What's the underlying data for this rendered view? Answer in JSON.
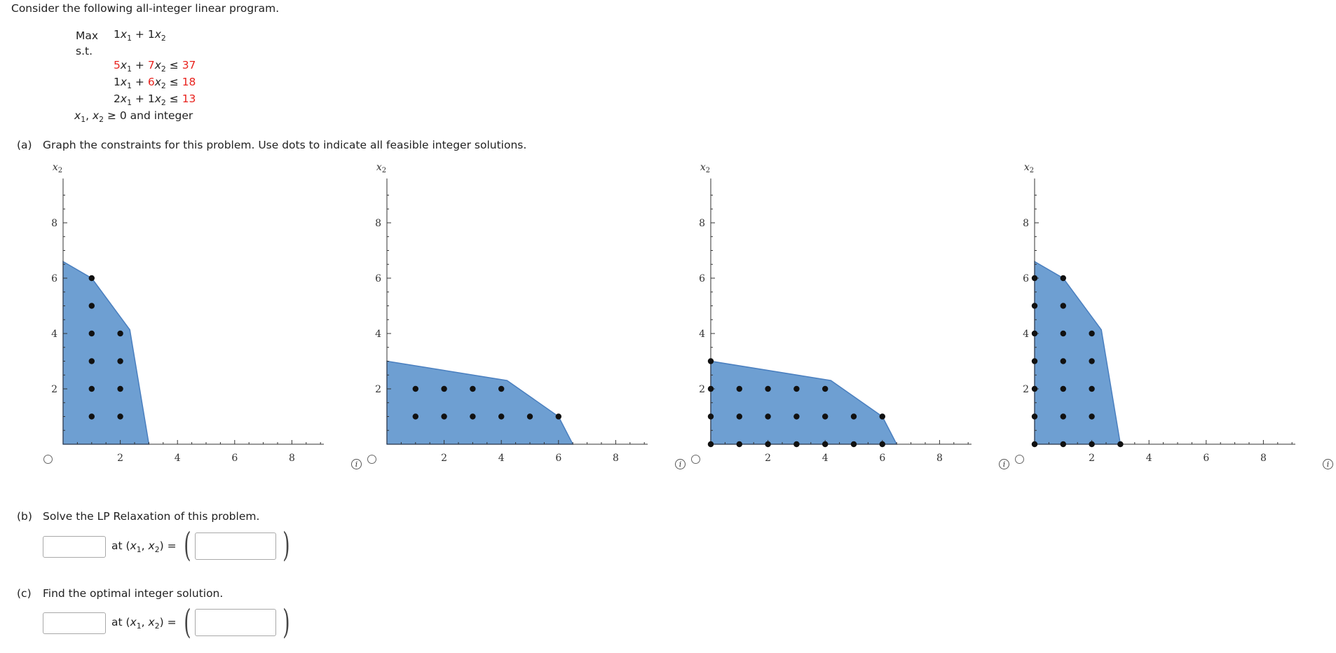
{
  "problem": {
    "intro": "Consider the following all-integer linear program.",
    "max_label": "Max",
    "st_label": "s.t.",
    "nonneg": "≥ 0 and integer",
    "objective": {
      "c1": "1",
      "c2": "1"
    },
    "constraints": [
      {
        "a": "5",
        "b": "7",
        "rhs": "37",
        "a_red": true,
        "b_red": true
      },
      {
        "a": "1",
        "b": "6",
        "rhs": "18",
        "a_red": false,
        "b_red": true
      },
      {
        "a": "2",
        "b": "1",
        "rhs": "13",
        "a_red": false,
        "b_red": false
      }
    ],
    "x1": "x",
    "x2": "x",
    "sub1": "1",
    "sub2": "2",
    "plus": "+",
    "le": "≤"
  },
  "colors": {
    "region": "#6e9fd2",
    "region_edge": "#4a7fbf",
    "red": "#e8231e",
    "dot": "#111111"
  },
  "part_a": {
    "label": "(a)",
    "text": "Graph the constraints for this problem. Use dots to indicate all feasible integer solutions.",
    "graphs": [
      {
        "region": [
          [
            0,
            0
          ],
          [
            0,
            6.6
          ],
          [
            1,
            6
          ],
          [
            2.333,
            4.133
          ],
          [
            3,
            0
          ]
        ],
        "points": [
          [
            1,
            6
          ],
          [
            1,
            5
          ],
          [
            1,
            4
          ],
          [
            2,
            4
          ],
          [
            1,
            3
          ],
          [
            2,
            3
          ],
          [
            1,
            2
          ],
          [
            2,
            2
          ],
          [
            1,
            1
          ],
          [
            2,
            1
          ]
        ]
      },
      {
        "region": [
          [
            0,
            0
          ],
          [
            0,
            3
          ],
          [
            4.2,
            2.3
          ],
          [
            6,
            1
          ],
          [
            6.5,
            0
          ]
        ],
        "points": [
          [
            1,
            2
          ],
          [
            2,
            2
          ],
          [
            3,
            2
          ],
          [
            4,
            2
          ],
          [
            1,
            1
          ],
          [
            2,
            1
          ],
          [
            3,
            1
          ],
          [
            4,
            1
          ],
          [
            5,
            1
          ],
          [
            6,
            1
          ]
        ]
      },
      {
        "region": [
          [
            0,
            0
          ],
          [
            0,
            3
          ],
          [
            4.2,
            2.3
          ],
          [
            6,
            1
          ],
          [
            6.5,
            0
          ]
        ],
        "points": [
          [
            0,
            3
          ],
          [
            0,
            2
          ],
          [
            1,
            2
          ],
          [
            2,
            2
          ],
          [
            3,
            2
          ],
          [
            4,
            2
          ],
          [
            0,
            1
          ],
          [
            1,
            1
          ],
          [
            2,
            1
          ],
          [
            3,
            1
          ],
          [
            4,
            1
          ],
          [
            5,
            1
          ],
          [
            6,
            1
          ],
          [
            0,
            0
          ],
          [
            1,
            0
          ],
          [
            2,
            0
          ],
          [
            3,
            0
          ],
          [
            4,
            0
          ],
          [
            5,
            0
          ],
          [
            6,
            0
          ]
        ]
      },
      {
        "region": [
          [
            0,
            0
          ],
          [
            0,
            6.6
          ],
          [
            1,
            6
          ],
          [
            2.333,
            4.133
          ],
          [
            3,
            0
          ]
        ],
        "points": [
          [
            0,
            6
          ],
          [
            1,
            6
          ],
          [
            0,
            5
          ],
          [
            1,
            5
          ],
          [
            0,
            4
          ],
          [
            1,
            4
          ],
          [
            2,
            4
          ],
          [
            0,
            3
          ],
          [
            1,
            3
          ],
          [
            2,
            3
          ],
          [
            0,
            2
          ],
          [
            1,
            2
          ],
          [
            2,
            2
          ],
          [
            0,
            1
          ],
          [
            1,
            1
          ],
          [
            2,
            1
          ],
          [
            0,
            0
          ],
          [
            1,
            0
          ],
          [
            2,
            0
          ],
          [
            3,
            0
          ]
        ]
      }
    ],
    "xlabel": "x1",
    "ylabel": "x2",
    "xticks": [
      "2",
      "4",
      "6",
      "8"
    ],
    "yticks": [
      "2",
      "4",
      "6",
      "8"
    ],
    "info_glyph": "i"
  },
  "part_b": {
    "label": "(b)",
    "text": "Solve the LP Relaxation of this problem.",
    "value": "",
    "coord_label_prefix": "at (",
    "coord_label_suffix": ") =",
    "coords": ""
  },
  "part_c": {
    "label": "(c)",
    "text": "Find the optimal integer solution.",
    "value": "",
    "coord_label_prefix": "at (",
    "coord_label_suffix": ") =",
    "coords": ""
  }
}
